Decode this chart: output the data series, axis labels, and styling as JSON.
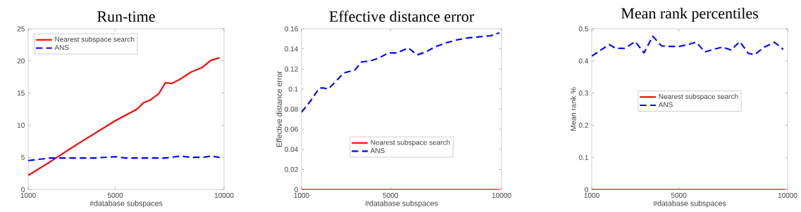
{
  "chart_data": [
    {
      "type": "line",
      "title": "Run-time",
      "xlabel": "#database subspaces",
      "xlim": [
        1000,
        10000
      ],
      "xticks": [
        1000,
        5000,
        10000
      ],
      "ylim": [
        0,
        25
      ],
      "yticks": [
        0,
        5,
        10,
        15,
        20,
        25
      ],
      "legend": "top left",
      "grid": false,
      "marker": "none",
      "series": [
        {
          "name": "Nearest subspace search",
          "color": "#ff0000",
          "line_style": "solid",
          "x": [
            1000,
            2000,
            3000,
            4000,
            5000,
            5500,
            6000,
            6300,
            6600,
            7000,
            7300,
            7600,
            8000,
            8500,
            9000,
            9400,
            9800
          ],
          "values": [
            2.2,
            4.3,
            6.5,
            8.6,
            10.7,
            11.6,
            12.5,
            13.5,
            13.9,
            14.9,
            16.6,
            16.5,
            17.2,
            18.3,
            19.0,
            20.1,
            20.5
          ]
        },
        {
          "name": "ANS",
          "color": "#0000ff",
          "line_style": "dashed",
          "x": [
            1000,
            2000,
            3000,
            4000,
            5000,
            5500,
            6000,
            7000,
            7300,
            8000,
            8500,
            9000,
            9400,
            9800
          ],
          "values": [
            4.5,
            4.9,
            4.9,
            4.9,
            5.1,
            4.9,
            4.9,
            4.9,
            4.9,
            5.2,
            5.0,
            5.0,
            5.2,
            5.0
          ]
        }
      ]
    },
    {
      "type": "line",
      "title": "Effective distance error",
      "xlabel": "#database subspaces",
      "ylabel": "Effective distance error",
      "xlim": [
        1000,
        10000
      ],
      "xticks": [
        1000,
        5000,
        10000
      ],
      "ylim": [
        0,
        0.16
      ],
      "yticks": [
        0,
        0.02,
        0.04,
        0.06,
        0.08,
        0.1,
        0.12,
        0.14,
        0.16
      ],
      "legend": "bottom",
      "grid": false,
      "marker": "none",
      "series": [
        {
          "name": "Nearest subspace search",
          "color": "#ff0000",
          "line_style": "solid",
          "x": [
            1000,
            9900
          ],
          "values": [
            0,
            0
          ]
        },
        {
          "name": "ANS",
          "color": "#0000ff",
          "line_style": "dashed",
          "x": [
            1000,
            1400,
            1800,
            2000,
            2200,
            2600,
            2900,
            3400,
            3700,
            4100,
            4500,
            4900,
            5300,
            5800,
            6200,
            6600,
            7000,
            7500,
            8000,
            8500,
            9000,
            9500,
            9900
          ],
          "values": [
            0.077,
            0.088,
            0.101,
            0.101,
            0.1,
            0.109,
            0.116,
            0.119,
            0.127,
            0.128,
            0.131,
            0.136,
            0.136,
            0.141,
            0.134,
            0.137,
            0.142,
            0.146,
            0.149,
            0.151,
            0.152,
            0.153,
            0.156
          ]
        }
      ]
    },
    {
      "type": "line",
      "title": "Mean rank percentiles",
      "xlabel": "#database subspaces",
      "ylabel": "Mean rank %",
      "xlim": [
        1000,
        10000
      ],
      "xticks": [
        1000,
        5000,
        10000
      ],
      "ylim": [
        0,
        0.5
      ],
      "yticks": [
        0,
        0.1,
        0.2,
        0.3,
        0.4,
        0.5
      ],
      "legend": "center",
      "grid": false,
      "marker": "none",
      "series": [
        {
          "name": "Nearest subspace search",
          "color": "#ff0000",
          "line_style": "solid",
          "x": [
            1000,
            9900
          ],
          "values": [
            0,
            0
          ]
        },
        {
          "name": "ANS",
          "color": "#0000ff",
          "line_style": "dashed",
          "x": [
            1000,
            1400,
            1800,
            2100,
            2500,
            3000,
            3400,
            3800,
            4200,
            4600,
            5000,
            5400,
            5800,
            6200,
            6600,
            7000,
            7400,
            7800,
            8200,
            8500,
            8900,
            9400,
            9800
          ],
          "values": [
            0.415,
            0.433,
            0.451,
            0.439,
            0.439,
            0.46,
            0.425,
            0.477,
            0.447,
            0.445,
            0.445,
            0.451,
            0.458,
            0.428,
            0.436,
            0.443,
            0.434,
            0.46,
            0.423,
            0.42,
            0.442,
            0.458,
            0.436
          ]
        }
      ]
    }
  ]
}
